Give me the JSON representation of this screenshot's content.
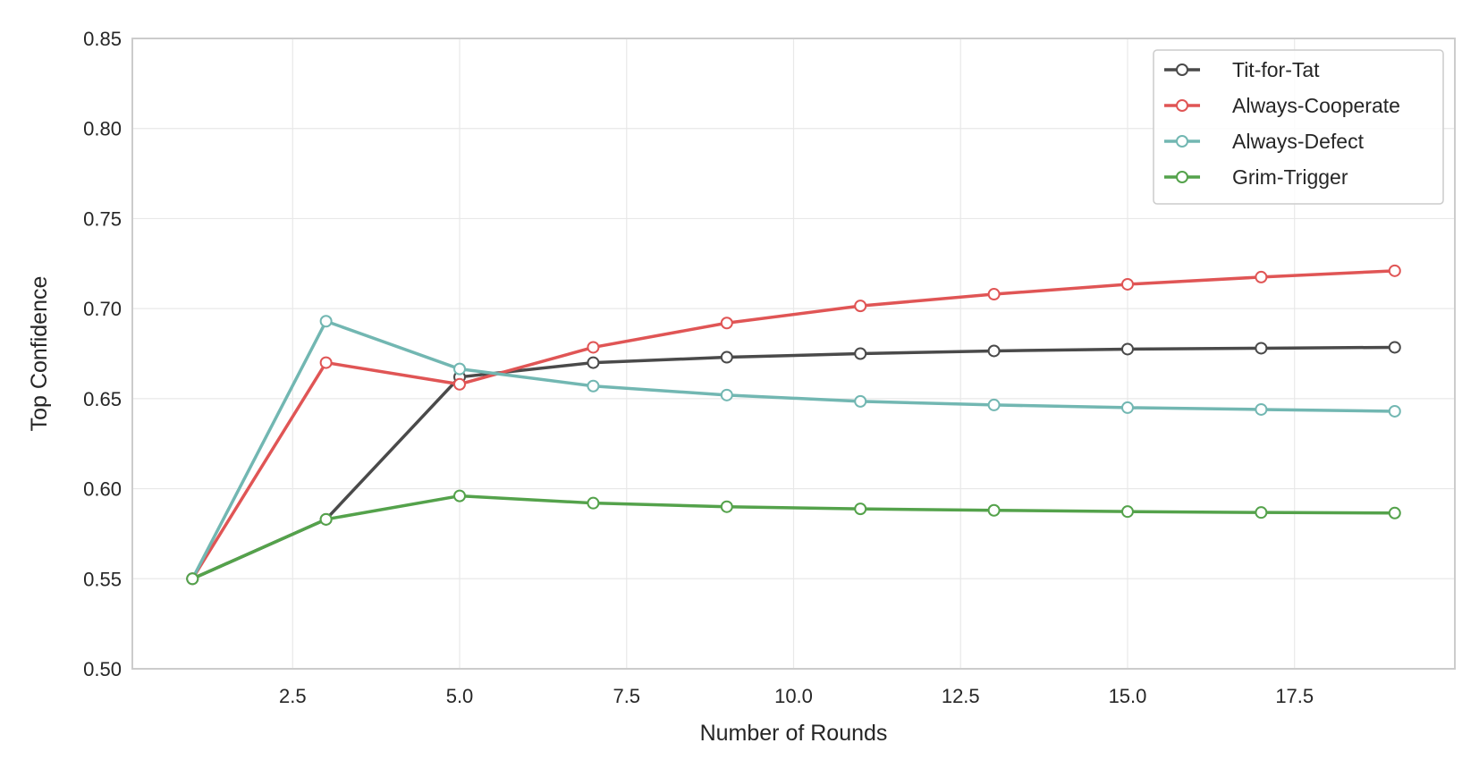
{
  "chart_data": {
    "type": "line",
    "title": "",
    "xlabel": "Number of Rounds",
    "ylabel": "Top Confidence",
    "xlim": [
      0.1,
      19.9
    ],
    "ylim": [
      0.5,
      0.85
    ],
    "xticks": [
      2.5,
      5.0,
      7.5,
      10.0,
      12.5,
      15.0,
      17.5
    ],
    "xtick_labels": [
      "2.5",
      "5.0",
      "7.5",
      "10.0",
      "12.5",
      "15.0",
      "17.5"
    ],
    "yticks": [
      0.5,
      0.55,
      0.6,
      0.65,
      0.7,
      0.75,
      0.8,
      0.85
    ],
    "ytick_labels": [
      "0.50",
      "0.55",
      "0.60",
      "0.65",
      "0.70",
      "0.75",
      "0.80",
      "0.85"
    ],
    "grid": true,
    "legend_position": "top-right",
    "x": [
      1,
      3,
      5,
      7,
      9,
      11,
      13,
      15,
      17,
      19
    ],
    "series": [
      {
        "name": "Tit-for-Tat",
        "color": "#4a4a4a",
        "values": [
          0.55,
          0.583,
          0.662,
          0.67,
          0.673,
          0.675,
          0.6765,
          0.6775,
          0.678,
          0.6785
        ]
      },
      {
        "name": "Always-Cooperate",
        "color": "#e05555",
        "values": [
          0.55,
          0.67,
          0.658,
          0.6785,
          0.692,
          0.7015,
          0.708,
          0.7135,
          0.7175,
          0.721
        ]
      },
      {
        "name": "Always-Defect",
        "color": "#72b7b2",
        "values": [
          0.55,
          0.693,
          0.6665,
          0.657,
          0.652,
          0.6485,
          0.6465,
          0.645,
          0.644,
          0.643
        ]
      },
      {
        "name": "Grim-Trigger",
        "color": "#54a24b",
        "values": [
          0.55,
          0.583,
          0.596,
          0.592,
          0.59,
          0.5888,
          0.588,
          0.5873,
          0.5868,
          0.5865
        ]
      }
    ]
  }
}
